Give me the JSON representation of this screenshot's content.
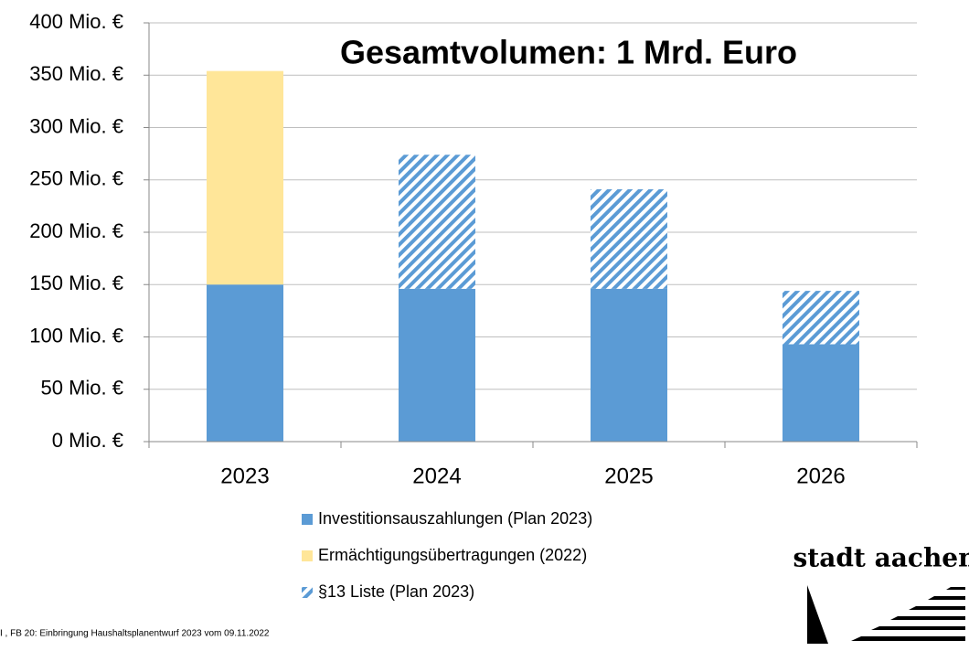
{
  "chart_data": {
    "type": "stacked-bar",
    "title": "Gesamtvolumen: 1 Mrd. Euro",
    "categories": [
      "2023",
      "2024",
      "2025",
      "2026"
    ],
    "series": [
      {
        "name": "Investitionsauszahlungen (Plan 2023)",
        "color": "#5b9bd5",
        "values": [
          150,
          146,
          146,
          93
        ]
      },
      {
        "name": "Ermächtigungsübertragungen (2022)",
        "color": "#ffe699",
        "values": [
          204,
          null,
          null,
          null
        ]
      },
      {
        "name": "§13 Liste (Plan 2023)",
        "color": "#5b9bd5",
        "pattern": "diagonal-stripes",
        "values": [
          null,
          128,
          95,
          51
        ]
      }
    ],
    "ylim": [
      0,
      400
    ],
    "yticks": [
      {
        "value": 0,
        "label": "0 Mio. €"
      },
      {
        "value": 50,
        "label": "50 Mio. €"
      },
      {
        "value": 100,
        "label": "100 Mio. €"
      },
      {
        "value": 150,
        "label": "150 Mio. €"
      },
      {
        "value": 200,
        "label": "200 Mio. €"
      },
      {
        "value": 250,
        "label": "250 Mio. €"
      },
      {
        "value": 300,
        "label": "300 Mio. €"
      },
      {
        "value": 350,
        "label": "350 Mio. €"
      },
      {
        "value": 400,
        "label": "400 Mio. €"
      }
    ],
    "grid": true,
    "legend": "bottom"
  },
  "footer": "I , FB 20: Einbringung Haushaltsplanentwurf 2023 vom 09.11.2022",
  "logo": "stadt aachen"
}
